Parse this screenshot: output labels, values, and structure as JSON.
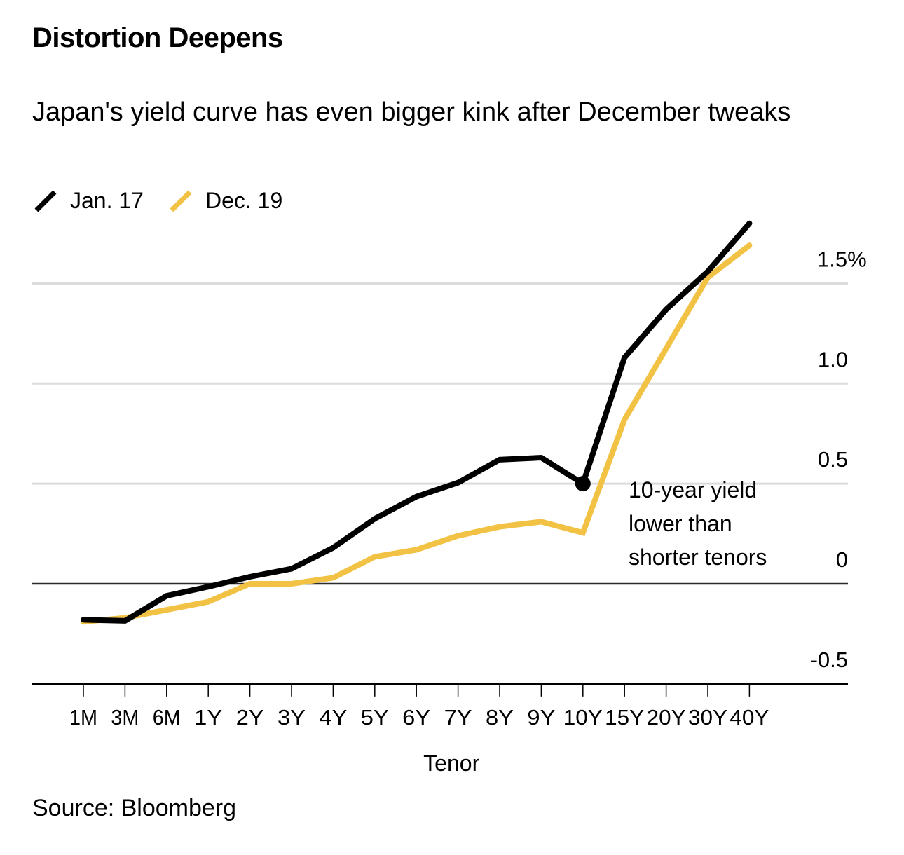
{
  "header": {
    "title": "Distortion Deepens",
    "subtitle": "Japan's yield curve has even bigger kink after December tweaks"
  },
  "legend": [
    {
      "label": "Jan. 17",
      "color": "#000000"
    },
    {
      "label": "Dec. 19",
      "color": "#F2C245"
    }
  ],
  "footer": {
    "source": "Source: Bloomberg"
  },
  "chart_data": {
    "type": "line",
    "title": "Distortion Deepens",
    "subtitle": "Japan's yield curve has even bigger kink after December tweaks",
    "xlabel": "Tenor",
    "ylabel": "",
    "categories": [
      "1M",
      "3M",
      "6M",
      "1Y",
      "2Y",
      "3Y",
      "4Y",
      "5Y",
      "6Y",
      "7Y",
      "8Y",
      "9Y",
      "10Y",
      "15Y",
      "20Y",
      "30Y",
      "40Y"
    ],
    "series": [
      {
        "name": "Jan. 17",
        "color": "#000000",
        "values": [
          -0.18,
          -0.185,
          -0.06,
          -0.015,
          0.035,
          0.075,
          0.18,
          0.325,
          0.435,
          0.505,
          0.62,
          0.63,
          0.5,
          1.13,
          1.37,
          1.56,
          1.8
        ]
      },
      {
        "name": "Dec. 19",
        "color": "#F2C245",
        "values": [
          -0.19,
          -0.17,
          -0.13,
          -0.09,
          0.0,
          0.0,
          0.03,
          0.135,
          0.17,
          0.24,
          0.285,
          0.31,
          0.255,
          0.82,
          1.175,
          1.53,
          1.69
        ]
      }
    ],
    "yticks": [
      {
        "value": 1.5,
        "label": "1.5%"
      },
      {
        "value": 1.0,
        "label": "1.0"
      },
      {
        "value": 0.5,
        "label": "0.5"
      },
      {
        "value": 0.0,
        "label": "0"
      },
      {
        "value": -0.5,
        "label": "-0.5"
      }
    ],
    "ylim": [
      -0.5,
      1.85
    ],
    "grid": true,
    "legend_position": "top-left",
    "yaxis_position": "right",
    "annotations": [
      {
        "series": "Jan. 17",
        "category": "10Y",
        "value": 0.5,
        "marker": "dot",
        "text_lines": [
          "10-year yield",
          "lower than",
          "shorter tenors"
        ]
      }
    ],
    "source": "Source: Bloomberg"
  }
}
